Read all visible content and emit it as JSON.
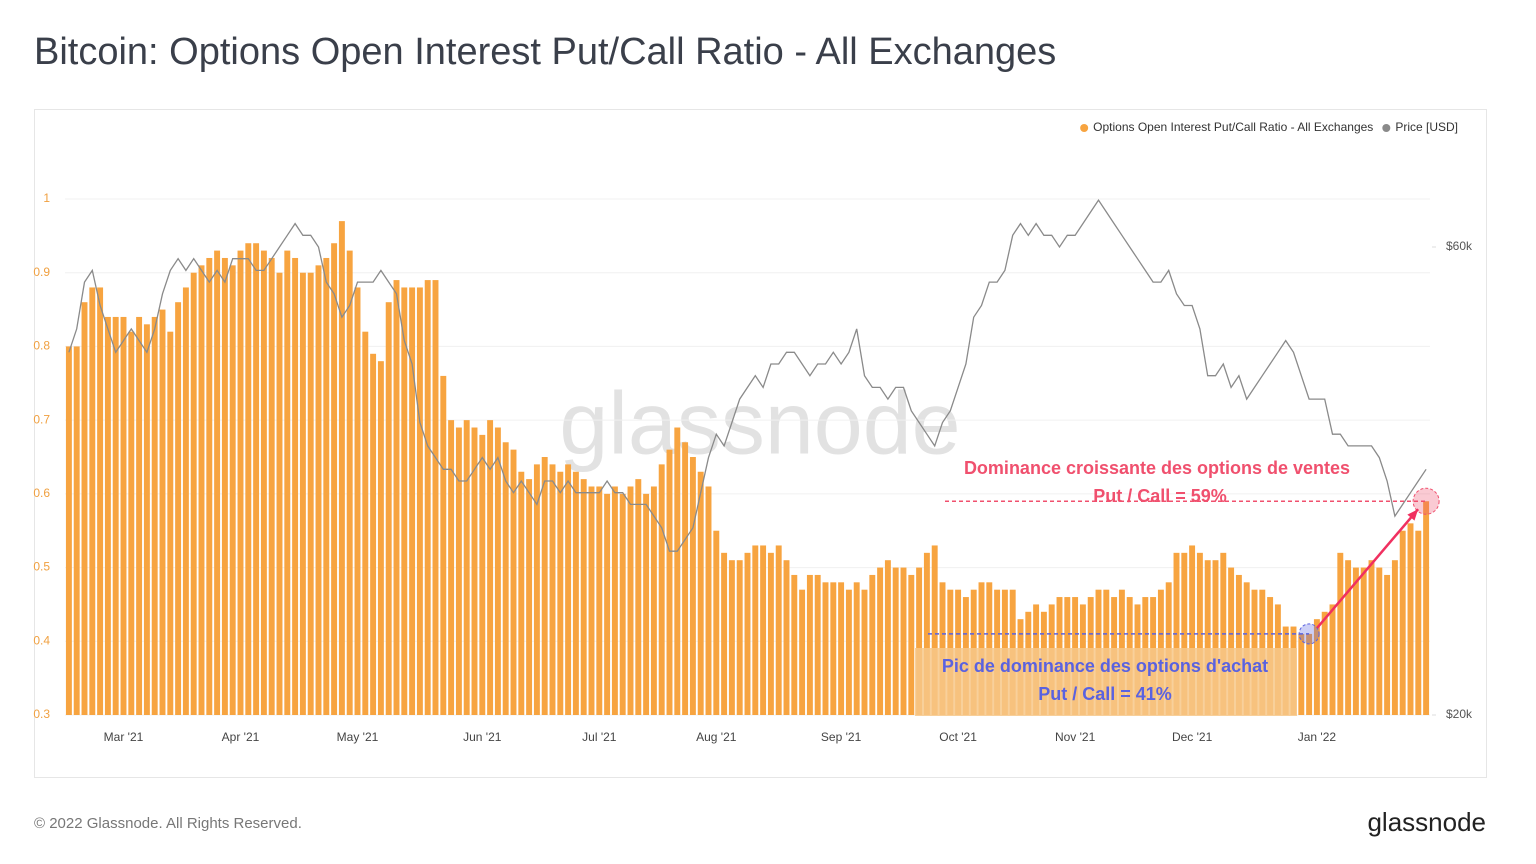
{
  "chart_data": {
    "type": "bar",
    "title": "Bitcoin: Options Open Interest Put/Call Ratio - All Exchanges",
    "categories": [
      null,
      null,
      null,
      null,
      null,
      null,
      null,
      "Mar '21",
      null,
      null,
      null,
      null,
      null,
      null,
      null,
      null,
      null,
      null,
      null,
      null,
      null,
      null,
      "Apr '21",
      null,
      null,
      null,
      null,
      null,
      null,
      null,
      null,
      null,
      null,
      null,
      null,
      null,
      null,
      "May '21",
      null,
      null,
      null,
      null,
      null,
      null,
      null,
      null,
      null,
      null,
      null,
      null,
      null,
      null,
      null,
      "Jun '21",
      null,
      null,
      null,
      null,
      null,
      null,
      null,
      null,
      null,
      null,
      null,
      null,
      null,
      null,
      "Jul '21",
      null,
      null,
      null,
      null,
      null,
      null,
      null,
      null,
      null,
      null,
      null,
      null,
      null,
      null,
      "Aug '21",
      null,
      null,
      null,
      null,
      null,
      null,
      null,
      null,
      null,
      null,
      null,
      null,
      null,
      null,
      null,
      "Sep '21",
      null,
      null,
      null,
      null,
      null,
      null,
      null,
      null,
      null,
      null,
      null,
      null,
      null,
      null,
      "Oct '21",
      null,
      null,
      null,
      null,
      null,
      null,
      null,
      null,
      null,
      null,
      null,
      null,
      null,
      null,
      "Nov '21",
      null,
      null,
      null,
      null,
      null,
      null,
      null,
      null,
      null,
      null,
      null,
      null,
      null,
      null,
      "Dec '21",
      null,
      null,
      null,
      null,
      null,
      null,
      null,
      null,
      null,
      null,
      null,
      null,
      null,
      null,
      null,
      "Jan '22",
      null,
      null,
      null,
      null,
      null,
      null,
      null,
      null,
      null,
      null,
      null,
      null,
      null,
      null
    ],
    "series": [
      {
        "name": "Options Open Interest Put/Call Ratio - All Exchanges",
        "type": "bar",
        "color": "#f7a440",
        "values": [
          0.8,
          0.8,
          0.86,
          0.88,
          0.88,
          0.84,
          0.84,
          0.84,
          0.82,
          0.84,
          0.83,
          0.84,
          0.85,
          0.82,
          0.86,
          0.88,
          0.9,
          0.91,
          0.92,
          0.93,
          0.92,
          0.91,
          0.93,
          0.94,
          0.94,
          0.93,
          0.92,
          0.9,
          0.93,
          0.92,
          0.9,
          0.9,
          0.91,
          0.92,
          0.94,
          0.97,
          0.93,
          0.88,
          0.82,
          0.79,
          0.78,
          0.86,
          0.89,
          0.88,
          0.88,
          0.88,
          0.89,
          0.89,
          0.76,
          0.7,
          0.69,
          0.7,
          0.69,
          0.68,
          0.7,
          0.69,
          0.67,
          0.66,
          0.63,
          0.62,
          0.64,
          0.65,
          0.64,
          0.63,
          0.64,
          0.63,
          0.62,
          0.61,
          0.61,
          0.6,
          0.61,
          0.6,
          0.61,
          0.62,
          0.6,
          0.61,
          0.64,
          0.66,
          0.69,
          0.67,
          0.65,
          0.63,
          0.61,
          0.55,
          0.52,
          0.51,
          0.51,
          0.52,
          0.53,
          0.53,
          0.52,
          0.53,
          0.51,
          0.49,
          0.47,
          0.49,
          0.49,
          0.48,
          0.48,
          0.48,
          0.47,
          0.48,
          0.47,
          0.49,
          0.5,
          0.51,
          0.5,
          0.5,
          0.49,
          0.5,
          0.52,
          0.53,
          0.48,
          0.47,
          0.47,
          0.46,
          0.47,
          0.48,
          0.48,
          0.47,
          0.47,
          0.47,
          0.43,
          0.44,
          0.45,
          0.44,
          0.45,
          0.46,
          0.46,
          0.46,
          0.45,
          0.46,
          0.47,
          0.47,
          0.46,
          0.47,
          0.46,
          0.45,
          0.46,
          0.46,
          0.47,
          0.48,
          0.52,
          0.52,
          0.53,
          0.52,
          0.51,
          0.51,
          0.52,
          0.5,
          0.49,
          0.48,
          0.47,
          0.47,
          0.46,
          0.45,
          0.42,
          0.42,
          0.41,
          0.41,
          0.43,
          0.44,
          0.45,
          0.52,
          0.51,
          0.5,
          0.5,
          0.51,
          0.5,
          0.49,
          0.51,
          0.55,
          0.56,
          0.55,
          0.59
        ]
      },
      {
        "name": "Price [USD]",
        "type": "line",
        "axis": "y2",
        "color": "#8a8a8a",
        "values": [
          51000,
          53000,
          57000,
          58000,
          55000,
          53000,
          51000,
          52000,
          53000,
          52000,
          51000,
          53000,
          56000,
          58000,
          59000,
          58000,
          59000,
          58000,
          57000,
          58000,
          57000,
          59000,
          59000,
          59000,
          58000,
          58000,
          59000,
          60000,
          61000,
          62000,
          61000,
          61000,
          60000,
          57000,
          56000,
          54000,
          55000,
          57000,
          57000,
          57000,
          58000,
          57000,
          56000,
          52000,
          50000,
          45000,
          43000,
          42000,
          41000,
          41000,
          40000,
          40000,
          41000,
          42000,
          41000,
          42000,
          40000,
          39000,
          40000,
          39000,
          38000,
          40000,
          40000,
          39000,
          40000,
          39000,
          39000,
          39000,
          39000,
          40000,
          39000,
          39000,
          38000,
          38000,
          38000,
          37000,
          36000,
          34000,
          34000,
          35000,
          36000,
          39000,
          42000,
          44000,
          43000,
          45000,
          47000,
          48000,
          49000,
          48000,
          50000,
          50000,
          51000,
          51000,
          50000,
          49000,
          50000,
          50000,
          51000,
          50000,
          51000,
          53000,
          49000,
          48000,
          48000,
          47000,
          48000,
          48000,
          46000,
          45000,
          44000,
          43000,
          45000,
          46000,
          48000,
          50000,
          54000,
          55000,
          57000,
          57000,
          58000,
          61000,
          62000,
          61000,
          62000,
          61000,
          61000,
          60000,
          61000,
          61000,
          62000,
          63000,
          64000,
          63000,
          62000,
          61000,
          60000,
          59000,
          58000,
          57000,
          57000,
          58000,
          56000,
          55000,
          55000,
          53000,
          49000,
          49000,
          50000,
          48000,
          49000,
          47000,
          48000,
          49000,
          50000,
          51000,
          52000,
          51000,
          49000,
          47000,
          47000,
          47000,
          44000,
          44000,
          43000,
          43000,
          43000,
          43000,
          42000,
          40000,
          37000,
          38000,
          39000,
          40000,
          41000
        ]
      }
    ],
    "ylim": [
      0.3,
      1
    ],
    "yticks": [
      0.3,
      0.4,
      0.5,
      0.6,
      0.7,
      0.8,
      0.9,
      1
    ],
    "y2lim": [
      20000,
      64100
    ],
    "y2ticks": [
      {
        "value": 20000,
        "label": "$20k"
      },
      {
        "value": 60000,
        "label": "$60k"
      }
    ],
    "grid": true,
    "legend": "top-right",
    "watermark": "glassnode",
    "annotations": [
      {
        "title": "Dominance croissante des options de ventes",
        "label": "Put / Call = 59%",
        "value": 0.59,
        "color": "#f0506e"
      },
      {
        "title": "Pic de dominance des options d'achat",
        "label": "Put / Call = 41%",
        "value": 0.41,
        "color": "#5a62e0"
      }
    ]
  },
  "footer": {
    "copyright": "© 2022 Glassnode. All Rights Reserved.",
    "logo": "glassnode"
  }
}
